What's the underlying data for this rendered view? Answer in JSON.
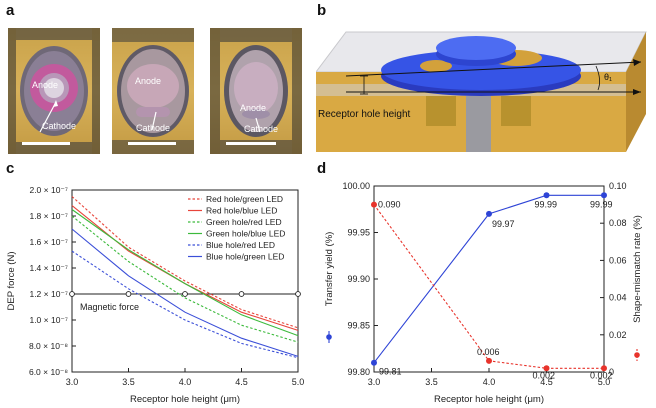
{
  "panels": {
    "a": "a",
    "b": "b",
    "c": "c",
    "d": "d"
  },
  "panel_a": {
    "images": [
      {
        "anode": "Anode",
        "cathode": "Cathode"
      },
      {
        "anode": "Anode",
        "cathode": "Cathode"
      },
      {
        "anode": "Anode",
        "cathode": "Cathode"
      }
    ]
  },
  "panel_b": {
    "label": "Receptor hole height",
    "angle_label": "θ₁"
  },
  "chart_data": [
    {
      "panel": "c",
      "type": "line",
      "xlabel": "Receptor hole height (μm)",
      "ylabel": "DEP force (N)",
      "xlim": [
        3.0,
        5.0
      ],
      "ylim": [
        6e-08,
        2e-07
      ],
      "xticks": [
        "3.0",
        "3.5",
        "4.0",
        "4.5",
        "5.0"
      ],
      "yticks": [
        "2.0 × 10⁻⁷",
        "1.8 × 10⁻⁷",
        "1.6 × 10⁻⁷",
        "1.4 × 10⁻⁷",
        "1.2 × 10⁻⁷",
        "1.0 × 10⁻⁷",
        "8.0 × 10⁻⁸",
        "6.0 × 10⁻⁸"
      ],
      "ytick_values": [
        2e-07,
        1.8e-07,
        1.6e-07,
        1.4e-07,
        1.2e-07,
        1e-07,
        8e-08,
        6e-08
      ],
      "x": [
        3.0,
        3.5,
        4.0,
        4.5,
        5.0
      ],
      "series": [
        {
          "name": "Red hole/green LED",
          "color": "#e8443a",
          "style": "dotted",
          "values": [
            1.95e-07,
            1.56e-07,
            1.3e-07,
            1.08e-07,
            9.4e-08
          ]
        },
        {
          "name": "Red hole/blue LED",
          "color": "#e8443a",
          "style": "solid",
          "values": [
            1.88e-07,
            1.53e-07,
            1.28e-07,
            1.06e-07,
            9.2e-08
          ]
        },
        {
          "name": "Green hole/red LED",
          "color": "#3cba3c",
          "style": "dotted",
          "values": [
            1.8e-07,
            1.45e-07,
            1.17e-07,
            9.6e-08,
            8.3e-08
          ]
        },
        {
          "name": "Green hole/blue LED",
          "color": "#3cba3c",
          "style": "solid",
          "values": [
            1.85e-07,
            1.54e-07,
            1.28e-07,
            1.04e-07,
            8.8e-08
          ]
        },
        {
          "name": "Blue hole/red LED",
          "color": "#3b4fd8",
          "style": "dotted",
          "values": [
            1.53e-07,
            1.24e-07,
            1e-07,
            8.2e-08,
            7.1e-08
          ]
        },
        {
          "name": "Blue hole/green LED",
          "color": "#3b4fd8",
          "style": "solid",
          "values": [
            1.7e-07,
            1.34e-07,
            1.06e-07,
            8.6e-08,
            7.2e-08
          ]
        }
      ],
      "reference": {
        "label": "Magnetic force",
        "value": 1.2e-07,
        "x": [
          3.0,
          3.5,
          4.0,
          4.5,
          5.0
        ]
      }
    },
    {
      "panel": "d",
      "type": "line",
      "xlabel": "Receptor hole height (μm)",
      "ylabel_left": "Transfer yield (%)",
      "ylabel_right": "Shape-mismatch rate (%)",
      "xlim": [
        3.0,
        5.0
      ],
      "ylim_left": [
        99.8,
        100.0
      ],
      "ylim_right": [
        0,
        0.1
      ],
      "xticks": [
        "3.0",
        "3.5",
        "4.0",
        "4.5",
        "5.0"
      ],
      "yticks_left": [
        "100.00",
        "99.95",
        "99.90",
        "99.85",
        "99.80"
      ],
      "yticks_left_values": [
        100.0,
        99.95,
        99.9,
        99.85,
        99.8
      ],
      "yticks_right": [
        "0.10",
        "0.08",
        "0.06",
        "0.04",
        "0.02",
        "0"
      ],
      "yticks_right_values": [
        0.1,
        0.08,
        0.06,
        0.04,
        0.02,
        0
      ],
      "series": [
        {
          "name": "Transfer yield (%)",
          "axis": "left",
          "color": "#2e44d6",
          "style": "solid",
          "x": [
            3.0,
            4.0,
            4.5,
            5.0
          ],
          "values": [
            99.81,
            99.97,
            99.99,
            99.99
          ],
          "labels": [
            "99.81",
            "99.97",
            "99.99",
            "99.99"
          ]
        },
        {
          "name": "Shape-mismatch rate (%)",
          "axis": "right",
          "color": "#e8332b",
          "style": "dotted",
          "x": [
            3.0,
            4.0,
            4.5,
            5.0
          ],
          "values": [
            0.09,
            0.006,
            0.002,
            0.002
          ],
          "labels": [
            "0.090",
            "0.006",
            "0.002",
            "0.002"
          ]
        }
      ]
    }
  ]
}
